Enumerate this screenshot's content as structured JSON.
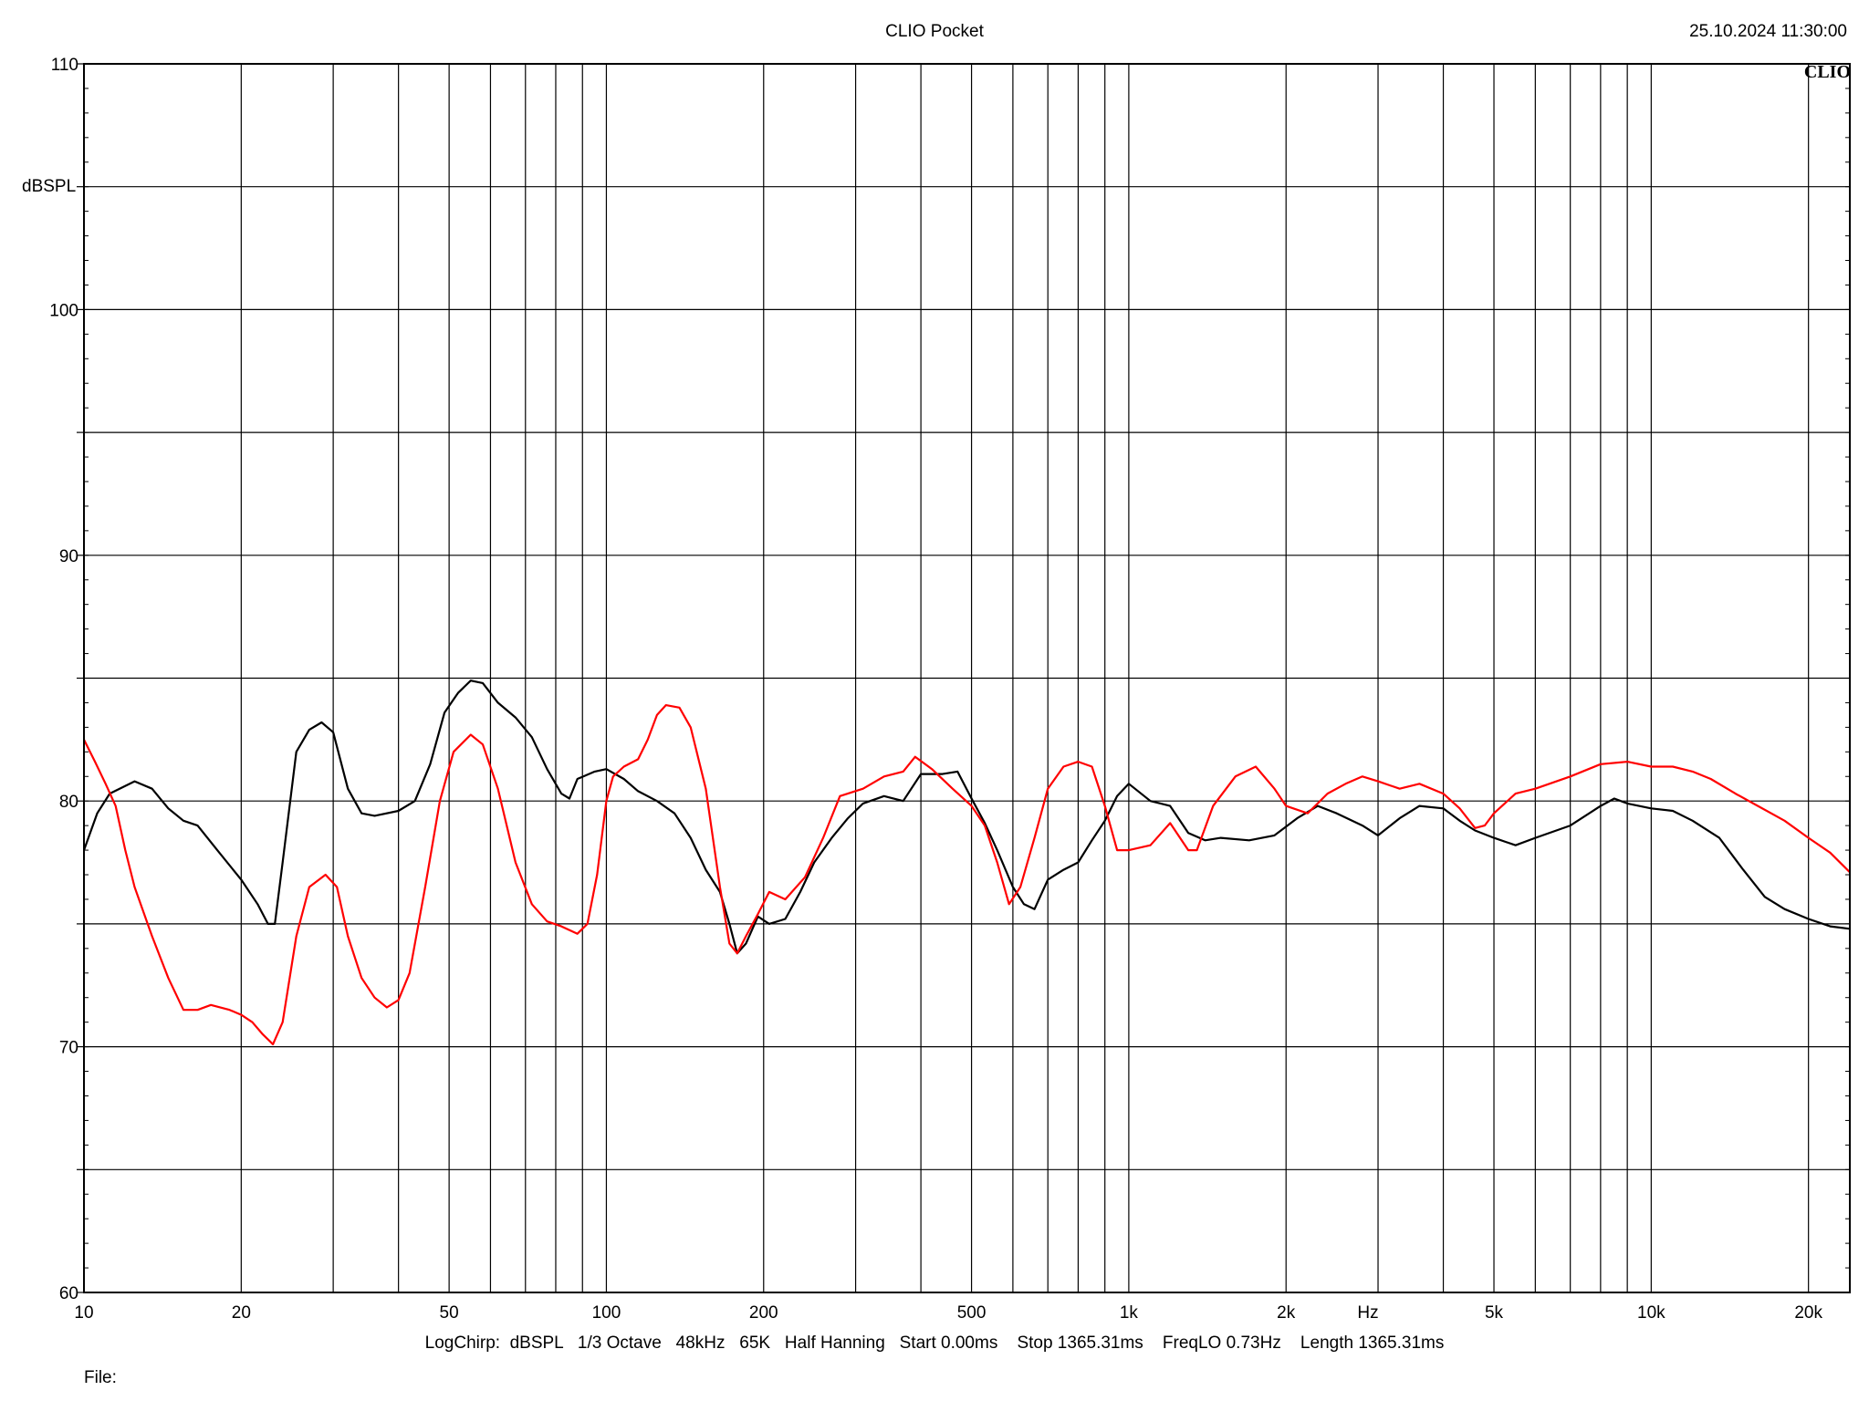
{
  "header": {
    "title": "CLIO Pocket",
    "timestamp": "25.10.2024 11:30:00",
    "brand": "CLIO"
  },
  "footer": {
    "settings": "LogChirp:  dBSPL   1/3 Octave   48kHz   65K   Half Hanning   Start 0.00ms    Stop 1365.31ms    FreqLO 0.73Hz    Length 1365.31ms",
    "file_label": "File:"
  },
  "chart_data": {
    "type": "line",
    "x_scale": "log",
    "xlim": [
      10,
      24000
    ],
    "ylim": [
      60,
      110
    ],
    "ylabel": "dBSPL",
    "xlabel": "Hz",
    "x_ticks": [
      {
        "value": 10,
        "label": "10"
      },
      {
        "value": 20,
        "label": "20"
      },
      {
        "value": 50,
        "label": "50"
      },
      {
        "value": 100,
        "label": "100"
      },
      {
        "value": 200,
        "label": "200"
      },
      {
        "value": 500,
        "label": "500"
      },
      {
        "value": 1000,
        "label": "1k"
      },
      {
        "value": 2000,
        "label": "2k"
      },
      {
        "value": 5000,
        "label": "5k"
      },
      {
        "value": 10000,
        "label": "10k"
      },
      {
        "value": 20000,
        "label": "20k"
      }
    ],
    "y_ticks": [
      {
        "value": 60,
        "label": "60"
      },
      {
        "value": 70,
        "label": "70"
      },
      {
        "value": 80,
        "label": "80"
      },
      {
        "value": 90,
        "label": "90"
      },
      {
        "value": 100,
        "label": "100"
      },
      {
        "value": 110,
        "label": "110"
      }
    ],
    "y_grid_step": 5,
    "x_gridlines": [
      10,
      20,
      30,
      40,
      50,
      60,
      70,
      80,
      90,
      100,
      200,
      300,
      400,
      500,
      600,
      700,
      800,
      900,
      1000,
      2000,
      3000,
      4000,
      5000,
      6000,
      7000,
      8000,
      9000,
      10000,
      20000
    ],
    "grid": true,
    "series": [
      {
        "color": "#000000",
        "points": [
          [
            10,
            78.0
          ],
          [
            10.6,
            79.5
          ],
          [
            11.2,
            80.3
          ],
          [
            12.5,
            80.8
          ],
          [
            13.5,
            80.5
          ],
          [
            14.5,
            79.7
          ],
          [
            15.5,
            79.2
          ],
          [
            16.5,
            79.0
          ],
          [
            18,
            78.0
          ],
          [
            20,
            76.8
          ],
          [
            21.5,
            75.8
          ],
          [
            22.5,
            75.0
          ],
          [
            23.2,
            75.0
          ],
          [
            24,
            77.5
          ],
          [
            25.5,
            82.0
          ],
          [
            27,
            82.9
          ],
          [
            28.5,
            83.2
          ],
          [
            30,
            82.8
          ],
          [
            32,
            80.5
          ],
          [
            34,
            79.5
          ],
          [
            36,
            79.4
          ],
          [
            40,
            79.6
          ],
          [
            43,
            80.0
          ],
          [
            46,
            81.5
          ],
          [
            49,
            83.6
          ],
          [
            52,
            84.4
          ],
          [
            55,
            84.9
          ],
          [
            58,
            84.8
          ],
          [
            62,
            84.0
          ],
          [
            67,
            83.4
          ],
          [
            72,
            82.6
          ],
          [
            77,
            81.3
          ],
          [
            82,
            80.3
          ],
          [
            85,
            80.1
          ],
          [
            88,
            80.9
          ],
          [
            95,
            81.2
          ],
          [
            100,
            81.3
          ],
          [
            108,
            80.9
          ],
          [
            115,
            80.4
          ],
          [
            125,
            80.0
          ],
          [
            135,
            79.5
          ],
          [
            145,
            78.5
          ],
          [
            155,
            77.2
          ],
          [
            165,
            76.3
          ],
          [
            172,
            75.0
          ],
          [
            178,
            73.8
          ],
          [
            185,
            74.2
          ],
          [
            195,
            75.3
          ],
          [
            205,
            75.0
          ],
          [
            220,
            75.2
          ],
          [
            235,
            76.3
          ],
          [
            250,
            77.5
          ],
          [
            270,
            78.5
          ],
          [
            290,
            79.3
          ],
          [
            310,
            79.9
          ],
          [
            340,
            80.2
          ],
          [
            370,
            80.0
          ],
          [
            400,
            81.1
          ],
          [
            440,
            81.1
          ],
          [
            470,
            81.2
          ],
          [
            500,
            80.1
          ],
          [
            530,
            79.1
          ],
          [
            560,
            78.0
          ],
          [
            600,
            76.5
          ],
          [
            630,
            75.8
          ],
          [
            660,
            75.6
          ],
          [
            700,
            76.8
          ],
          [
            750,
            77.2
          ],
          [
            800,
            77.5
          ],
          [
            850,
            78.4
          ],
          [
            900,
            79.2
          ],
          [
            950,
            80.2
          ],
          [
            1000,
            80.7
          ],
          [
            1100,
            80.0
          ],
          [
            1200,
            79.8
          ],
          [
            1300,
            78.7
          ],
          [
            1400,
            78.4
          ],
          [
            1500,
            78.5
          ],
          [
            1700,
            78.4
          ],
          [
            1900,
            78.6
          ],
          [
            2100,
            79.3
          ],
          [
            2300,
            79.8
          ],
          [
            2500,
            79.5
          ],
          [
            2800,
            79.0
          ],
          [
            3000,
            78.6
          ],
          [
            3300,
            79.3
          ],
          [
            3600,
            79.8
          ],
          [
            4000,
            79.7
          ],
          [
            4300,
            79.2
          ],
          [
            4600,
            78.8
          ],
          [
            5000,
            78.5
          ],
          [
            5500,
            78.2
          ],
          [
            6000,
            78.5
          ],
          [
            7000,
            79.0
          ],
          [
            8000,
            79.8
          ],
          [
            8500,
            80.1
          ],
          [
            9000,
            79.9
          ],
          [
            10000,
            79.7
          ],
          [
            11000,
            79.6
          ],
          [
            12000,
            79.2
          ],
          [
            13500,
            78.5
          ],
          [
            15000,
            77.2
          ],
          [
            16500,
            76.1
          ],
          [
            18000,
            75.6
          ],
          [
            20000,
            75.2
          ],
          [
            22000,
            74.9
          ],
          [
            24000,
            74.8
          ]
        ]
      },
      {
        "color": "#ff0000",
        "points": [
          [
            10,
            82.5
          ],
          [
            10.5,
            81.6
          ],
          [
            11,
            80.7
          ],
          [
            11.5,
            79.8
          ],
          [
            12,
            78.0
          ],
          [
            12.5,
            76.5
          ],
          [
            13.5,
            74.5
          ],
          [
            14.5,
            72.8
          ],
          [
            15.5,
            71.5
          ],
          [
            16.5,
            71.5
          ],
          [
            17.5,
            71.7
          ],
          [
            19,
            71.5
          ],
          [
            20,
            71.3
          ],
          [
            21,
            71.0
          ],
          [
            22,
            70.5
          ],
          [
            23,
            70.1
          ],
          [
            24,
            71.0
          ],
          [
            25.5,
            74.5
          ],
          [
            27,
            76.5
          ],
          [
            29,
            77.0
          ],
          [
            30.5,
            76.5
          ],
          [
            32,
            74.5
          ],
          [
            34,
            72.8
          ],
          [
            36,
            72.0
          ],
          [
            38,
            71.6
          ],
          [
            40,
            71.9
          ],
          [
            42,
            73.0
          ],
          [
            45,
            76.5
          ],
          [
            48,
            80.0
          ],
          [
            51,
            82.0
          ],
          [
            55,
            82.7
          ],
          [
            58,
            82.3
          ],
          [
            62,
            80.5
          ],
          [
            67,
            77.5
          ],
          [
            72,
            75.8
          ],
          [
            77,
            75.1
          ],
          [
            82,
            74.9
          ],
          [
            88,
            74.6
          ],
          [
            92,
            75.0
          ],
          [
            96,
            77.0
          ],
          [
            100,
            80.0
          ],
          [
            103,
            81.0
          ],
          [
            108,
            81.4
          ],
          [
            115,
            81.7
          ],
          [
            120,
            82.5
          ],
          [
            125,
            83.5
          ],
          [
            130,
            83.9
          ],
          [
            138,
            83.8
          ],
          [
            145,
            83.0
          ],
          [
            155,
            80.5
          ],
          [
            165,
            76.5
          ],
          [
            172,
            74.2
          ],
          [
            178,
            73.8
          ],
          [
            185,
            74.5
          ],
          [
            195,
            75.4
          ],
          [
            205,
            76.3
          ],
          [
            220,
            76.0
          ],
          [
            240,
            76.9
          ],
          [
            260,
            78.5
          ],
          [
            280,
            80.2
          ],
          [
            310,
            80.5
          ],
          [
            340,
            81.0
          ],
          [
            370,
            81.2
          ],
          [
            390,
            81.8
          ],
          [
            420,
            81.3
          ],
          [
            460,
            80.5
          ],
          [
            500,
            79.8
          ],
          [
            530,
            79.0
          ],
          [
            560,
            77.5
          ],
          [
            590,
            75.8
          ],
          [
            620,
            76.5
          ],
          [
            660,
            78.5
          ],
          [
            700,
            80.5
          ],
          [
            750,
            81.4
          ],
          [
            800,
            81.6
          ],
          [
            850,
            81.4
          ],
          [
            900,
            79.8
          ],
          [
            950,
            78.0
          ],
          [
            1000,
            78.0
          ],
          [
            1100,
            78.2
          ],
          [
            1200,
            79.1
          ],
          [
            1300,
            78.0
          ],
          [
            1350,
            78.0
          ],
          [
            1450,
            79.8
          ],
          [
            1600,
            81.0
          ],
          [
            1750,
            81.4
          ],
          [
            1900,
            80.5
          ],
          [
            2000,
            79.8
          ],
          [
            2200,
            79.5
          ],
          [
            2400,
            80.3
          ],
          [
            2600,
            80.7
          ],
          [
            2800,
            81.0
          ],
          [
            3000,
            80.8
          ],
          [
            3300,
            80.5
          ],
          [
            3600,
            80.7
          ],
          [
            4000,
            80.3
          ],
          [
            4300,
            79.7
          ],
          [
            4600,
            78.9
          ],
          [
            4800,
            79.0
          ],
          [
            5000,
            79.5
          ],
          [
            5500,
            80.3
          ],
          [
            6000,
            80.5
          ],
          [
            7000,
            81.0
          ],
          [
            8000,
            81.5
          ],
          [
            9000,
            81.6
          ],
          [
            10000,
            81.4
          ],
          [
            11000,
            81.4
          ],
          [
            12000,
            81.2
          ],
          [
            13000,
            80.9
          ],
          [
            14500,
            80.3
          ],
          [
            16000,
            79.8
          ],
          [
            18000,
            79.2
          ],
          [
            20000,
            78.5
          ],
          [
            22000,
            77.9
          ],
          [
            24000,
            77.1
          ]
        ]
      }
    ]
  }
}
